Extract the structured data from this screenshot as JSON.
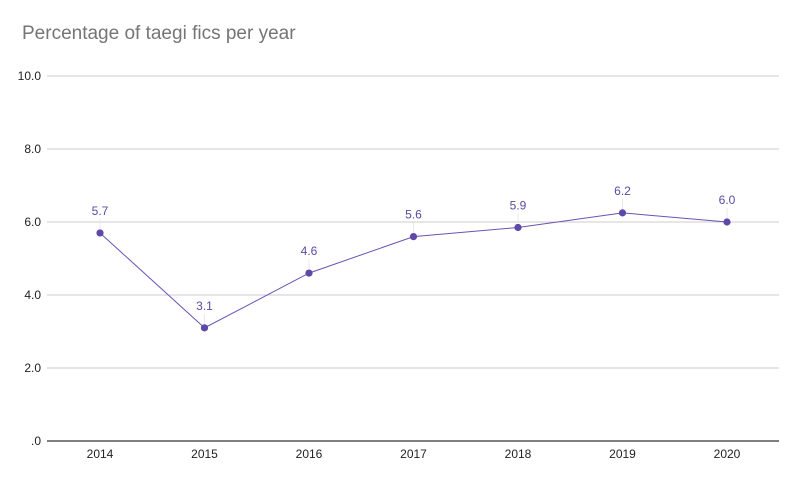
{
  "chart_data": {
    "type": "line",
    "title": "Percentage of taegi fics per year",
    "xlabel": "",
    "ylabel": "",
    "categories": [
      "2014",
      "2015",
      "2016",
      "2017",
      "2018",
      "2019",
      "2020"
    ],
    "series": [
      {
        "name": "Percentage",
        "values": [
          5.7,
          3.1,
          4.6,
          5.6,
          5.85,
          6.25,
          6.0
        ],
        "labels": [
          "5.7",
          "3.1",
          "4.6",
          "5.6",
          "5.9",
          "6.2",
          "6.0"
        ]
      }
    ],
    "ylim": [
      0,
      10
    ],
    "yticks": [
      0,
      2,
      4,
      6,
      8,
      10
    ],
    "ytick_labels": [
      ".0",
      "2.0",
      "4.0",
      "6.0",
      "8.0",
      "10.0"
    ],
    "grid": true,
    "colors": {
      "line": "#6a54b3",
      "marker": "#5e48a8",
      "label": "#5b4a9f",
      "grid": "#cccccc",
      "axis": "#333333",
      "title": "#757575"
    }
  }
}
